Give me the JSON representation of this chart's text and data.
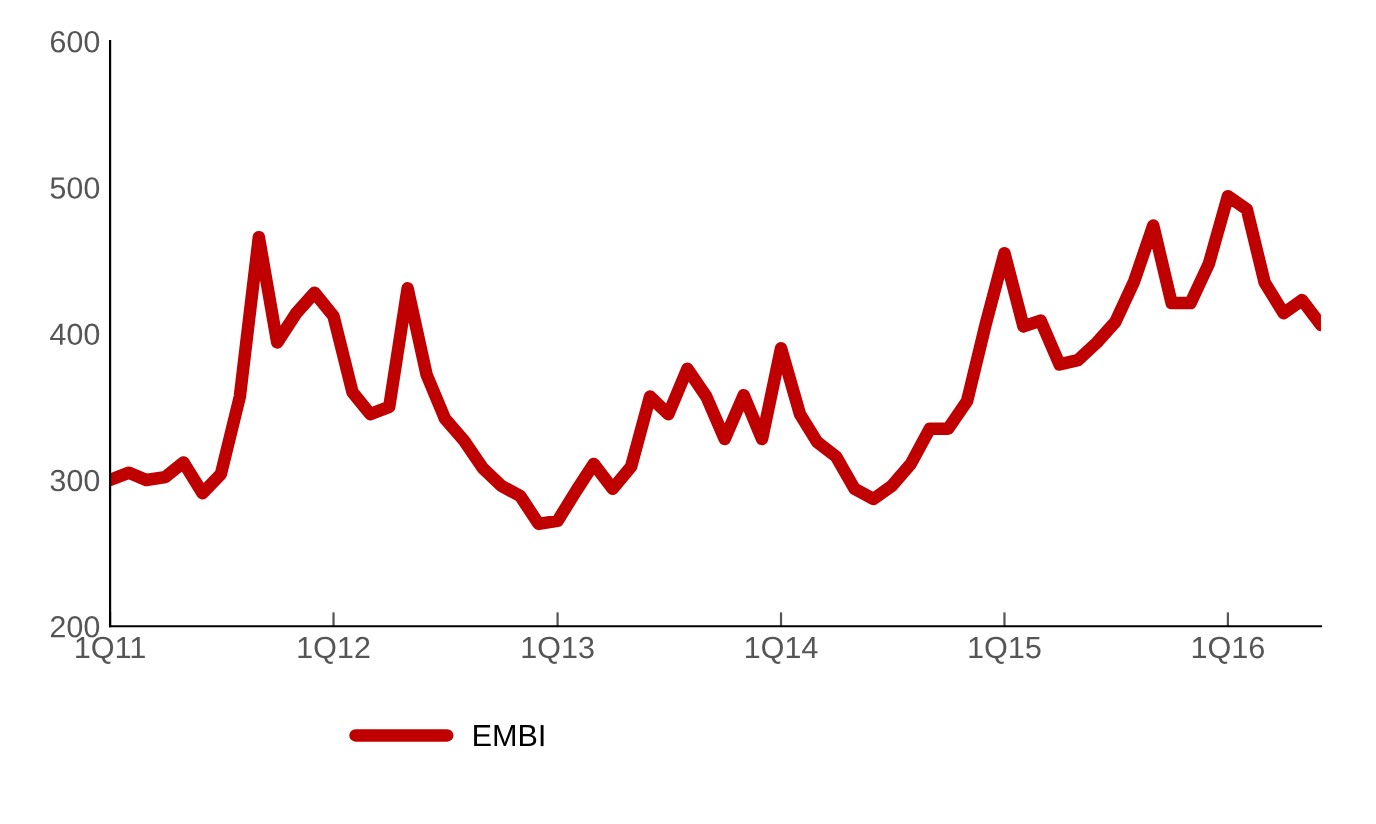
{
  "chart_data": {
    "type": "line",
    "x": [
      "2011-01",
      "2011-02",
      "2011-03",
      "2011-04",
      "2011-05",
      "2011-06",
      "2011-07",
      "2011-08",
      "2011-09",
      "2011-10",
      "2011-11",
      "2011-12",
      "2012-01",
      "2012-02",
      "2012-03",
      "2012-04",
      "2012-05",
      "2012-06",
      "2012-07",
      "2012-08",
      "2012-09",
      "2012-10",
      "2012-11",
      "2012-12",
      "2013-01",
      "2013-02",
      "2013-03",
      "2013-04",
      "2013-05",
      "2013-06",
      "2013-07",
      "2013-08",
      "2013-09",
      "2013-10",
      "2013-11",
      "2013-12",
      "2014-01",
      "2014-02",
      "2014-03",
      "2014-04",
      "2014-05",
      "2014-06",
      "2014-07",
      "2014-08",
      "2014-09",
      "2014-10",
      "2014-11",
      "2014-12",
      "2015-01",
      "2015-02",
      "2015-03",
      "2015-04",
      "2015-05",
      "2015-06",
      "2015-07",
      "2015-08",
      "2015-09",
      "2015-10",
      "2015-11",
      "2015-12",
      "2016-01",
      "2016-02",
      "2016-03",
      "2016-04",
      "2016-05",
      "2016-06"
    ],
    "series": [
      {
        "name": "EMBI",
        "color": "#c00000",
        "values": [
          300,
          305,
          300,
          302,
          312,
          291,
          304,
          357,
          466,
          394,
          414,
          428,
          412,
          360,
          345,
          350,
          431,
          372,
          342,
          327,
          308,
          296,
          289,
          270,
          272,
          293,
          311,
          294,
          309,
          357,
          345,
          376,
          357,
          328,
          358,
          328,
          390,
          345,
          326,
          316,
          294,
          287,
          296,
          311,
          335,
          335,
          354,
          406,
          455,
          405,
          409,
          379,
          382,
          394,
          408,
          436,
          474,
          421,
          421,
          448,
          494,
          485,
          435,
          414,
          423,
          406
        ]
      }
    ],
    "xlim": [
      "2011-01",
      "2016-06"
    ],
    "xticks": [
      {
        "value": "2011-01",
        "label": "1Q11"
      },
      {
        "value": "2012-01",
        "label": "1Q12"
      },
      {
        "value": "2013-01",
        "label": "1Q13"
      },
      {
        "value": "2014-01",
        "label": "1Q14"
      },
      {
        "value": "2015-01",
        "label": "1Q15"
      },
      {
        "value": "2016-01",
        "label": "1Q16"
      }
    ],
    "ylim": [
      200,
      600
    ],
    "yticks": [
      200,
      300,
      400,
      500,
      600
    ],
    "grid": false,
    "legend": "bottom",
    "marker": "none",
    "line_style": "solid"
  }
}
